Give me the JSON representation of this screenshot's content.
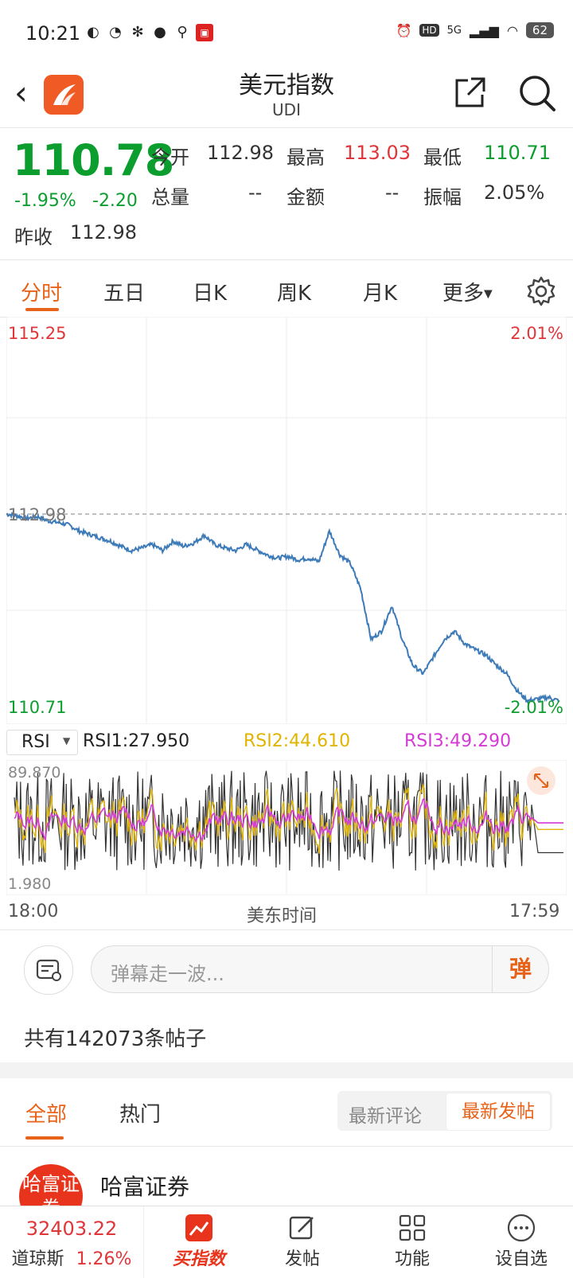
{
  "status_bar": {
    "time": "10:21",
    "network": "5G",
    "hd": "HD",
    "battery": "62"
  },
  "header": {
    "title": "美元指数",
    "subtitle": "UDI"
  },
  "quote": {
    "price": "110.78",
    "change_pct": "-1.95%",
    "change": "-2.20",
    "open_label": "今开",
    "open": "112.98",
    "high_label": "最高",
    "high": "113.03",
    "low_label": "最低",
    "low": "110.71",
    "volume_label": "总量",
    "volume": "--",
    "amount_label": "金额",
    "amount": "--",
    "amplitude_label": "振幅",
    "amplitude": "2.05%",
    "prev_close_label": "昨收",
    "prev_close": "112.98"
  },
  "tabs": [
    "分时",
    "五日",
    "日K",
    "周K",
    "月K",
    "更多"
  ],
  "chart_data": [
    {
      "type": "line",
      "y_top_label": "115.25",
      "y_mid_label": "112.98",
      "y_bottom_label": "110.71",
      "pct_top": "2.01%",
      "pct_bottom": "-2.01%",
      "ylim": [
        110.71,
        115.25
      ],
      "reference": 112.98,
      "x_start": "18:00",
      "x_end": "17:59",
      "x_mid": "美东时间",
      "series": [
        {
          "values": [
            112.98,
            112.96,
            112.93,
            112.95,
            112.9,
            112.88,
            112.85,
            112.78,
            112.74,
            112.7,
            112.66,
            112.6,
            112.55,
            112.58,
            112.62,
            112.55,
            112.66,
            112.6,
            112.64,
            112.73,
            112.62,
            112.58,
            112.55,
            112.62,
            112.56,
            112.5,
            112.46,
            112.48,
            112.44,
            112.46,
            112.42,
            112.78,
            112.5,
            112.4,
            112.1,
            111.5,
            111.6,
            111.9,
            111.5,
            111.2,
            111.1,
            111.3,
            111.5,
            111.6,
            111.45,
            111.38,
            111.32,
            111.2,
            111.1,
            110.9,
            110.78,
            110.8,
            110.82,
            110.78
          ]
        }
      ]
    },
    {
      "type": "line",
      "indicator": "RSI",
      "rsi1_label": "RSI1:27.950",
      "rsi2_label": "RSI2:44.610",
      "rsi3_label": "RSI3:49.290",
      "y_top_label": "89.870",
      "y_bottom_label": "1.980",
      "ylim": [
        1.98,
        89.87
      ],
      "series": [
        {
          "name": "RSI1",
          "color": "#333333",
          "values": []
        },
        {
          "name": "RSI2",
          "color": "#e0b400",
          "values": []
        },
        {
          "name": "RSI3",
          "color": "#d43bd4",
          "values": []
        }
      ],
      "last_values": [
        27.95,
        44.61,
        49.29
      ]
    }
  ],
  "comments": {
    "placeholder": "弹幕走一波...",
    "bullet_label": "弹",
    "posts_count": "共有142073条帖子",
    "tab_all": "全部",
    "tab_hot": "热门",
    "sort_latest_comment": "最新评论",
    "sort_latest_post": "最新发帖",
    "first_poster": "哈富证券",
    "first_avatar_text": "哈富证券"
  },
  "bottom_nav": {
    "index_value": "32403.22",
    "index_name": "道琼斯",
    "index_pct": "1.26%",
    "buy_index": "买指数",
    "post": "发帖",
    "function": "功能",
    "watchlist": "设自选"
  },
  "colors": {
    "up": "#e0363a",
    "down": "#0c9d2f",
    "accent": "#e8631a",
    "line": "#3c7ab8"
  }
}
